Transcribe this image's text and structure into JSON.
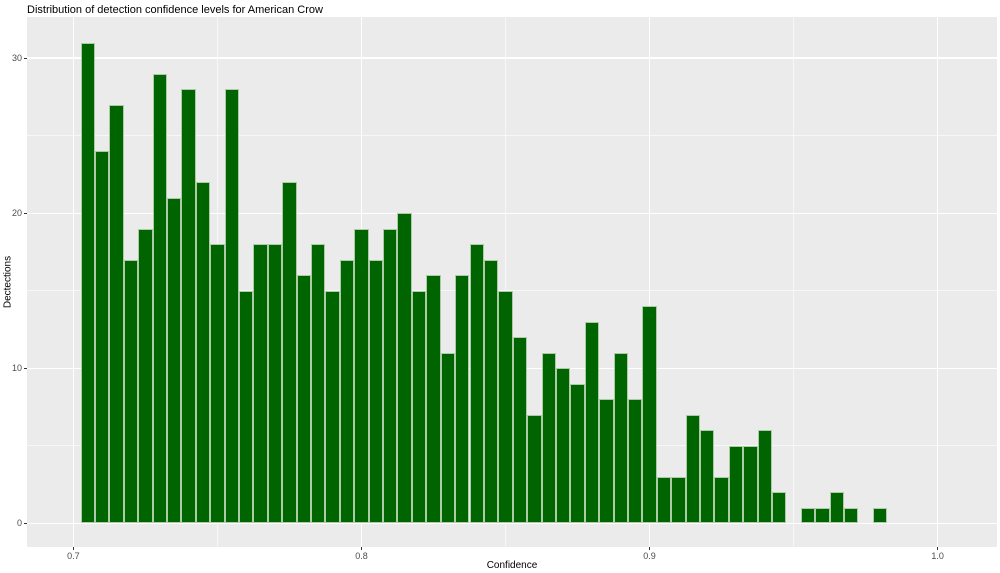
{
  "title": "Distribution of detection confidence levels for American Crow",
  "colors": {
    "panel_bg": "#EBEBEB",
    "plot_bg": "#FFFFFF",
    "grid": "#FFFFFF",
    "bar_fill": "#006400",
    "bar_border": "#AECBA8",
    "axis_text": "#4D4D4D",
    "title_text": "#000000",
    "tick_mark": "#333333"
  },
  "chart_data": {
    "type": "bar",
    "subtype": "histogram",
    "title": "Distribution of detection confidence levels for American Crow",
    "xlabel": "Confidence",
    "ylabel": "Dectections",
    "legend": "none",
    "grid": "on",
    "bin_start": 0.7025,
    "bin_width": 0.005,
    "counts": [
      31,
      24,
      27,
      17,
      19,
      29,
      21,
      28,
      22,
      18,
      28,
      15,
      18,
      18,
      22,
      16,
      18,
      15,
      17,
      19,
      17,
      19,
      20,
      15,
      16,
      11,
      16,
      18,
      17,
      15,
      12,
      7,
      11,
      10,
      9,
      13,
      8,
      11,
      8,
      14,
      3,
      3,
      7,
      6,
      3,
      5,
      5,
      6,
      2,
      0,
      1,
      1,
      2,
      1,
      0,
      1
    ],
    "x_ticks": {
      "values": [
        0.7,
        0.8,
        0.9,
        1.0
      ],
      "labels": [
        "0.7",
        "0.8",
        "0.9",
        "1.0"
      ]
    },
    "y_ticks": {
      "values": [
        0,
        10,
        20,
        30
      ],
      "labels": [
        "0",
        "10",
        "20",
        "30"
      ]
    },
    "x_minor": [
      0.75,
      0.85,
      0.95
    ],
    "y_minor": [
      5,
      15,
      25
    ],
    "xlim": [
      0.6839,
      1.0206
    ],
    "ylim": [
      -1.53,
      32.66
    ]
  }
}
